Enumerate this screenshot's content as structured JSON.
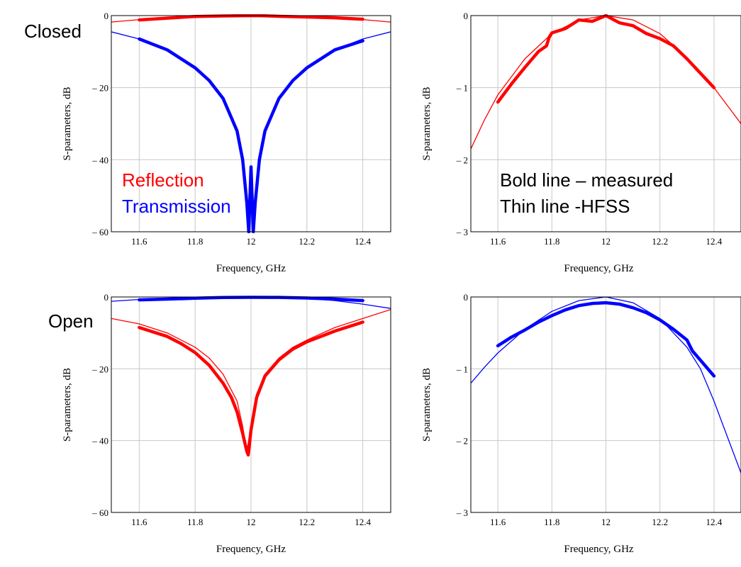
{
  "labels": {
    "closed": "Closed",
    "open": "Open",
    "reflection": "Reflection",
    "transmission": "Transmission",
    "bold_note": "Bold line – measured",
    "thin_note": "Thin line -HFSS"
  },
  "colors": {
    "reflection": "#ff0000",
    "transmission": "#0000ff",
    "grid": "#c8c8c8"
  },
  "chart_data": [
    {
      "type": "line",
      "panel": "top-left",
      "xlabel": "Frequency, GHz",
      "ylabel": "S-parameters, dB",
      "xlim": [
        11.5,
        12.5
      ],
      "ylim": [
        -60,
        0
      ],
      "xticks": [
        11.6,
        11.8,
        12,
        12.2,
        12.4
      ],
      "xtick_labels": [
        "11.6",
        "11.8",
        "12",
        "12.2",
        "12.4"
      ],
      "yticks": [
        0,
        -20,
        -40,
        -60
      ],
      "ytick_labels": [
        "0",
        "– 20",
        "– 40",
        "– 60"
      ],
      "grid": true,
      "series": [
        {
          "kind": "reflection-hfss",
          "color": "#ff0000",
          "bold": false,
          "x": [
            11.5,
            11.6,
            11.7,
            11.8,
            11.9,
            12.0,
            12.1,
            12.2,
            12.3,
            12.4,
            12.5
          ],
          "y": [
            -1.8,
            -1.1,
            -0.6,
            -0.3,
            -0.1,
            0.0,
            -0.1,
            -0.3,
            -0.6,
            -1.1,
            -1.8
          ]
        },
        {
          "kind": "reflection-measured",
          "color": "#ff0000",
          "bold": true,
          "x": [
            11.6,
            11.7,
            11.8,
            11.9,
            11.95,
            12.0,
            12.05,
            12.1,
            12.2,
            12.3,
            12.4
          ],
          "y": [
            -1.2,
            -0.7,
            -0.25,
            -0.1,
            -0.05,
            0.0,
            -0.05,
            -0.2,
            -0.4,
            -0.6,
            -1.0
          ]
        },
        {
          "kind": "transmission-hfss",
          "color": "#0000ff",
          "bold": false,
          "x": [
            11.5,
            11.6,
            11.7,
            11.8,
            11.85,
            11.9,
            11.95,
            11.97,
            11.985,
            11.995,
            12.005,
            12.015,
            12.03,
            12.05,
            12.1,
            12.15,
            12.2,
            12.3,
            12.4,
            12.5
          ],
          "y": [
            -4.5,
            -6.5,
            -9.5,
            -14.5,
            -18,
            -23,
            -32,
            -39,
            -50,
            -60,
            -60,
            -50,
            -39,
            -32,
            -23,
            -18,
            -14.5,
            -9.5,
            -6.5,
            -4.5
          ]
        },
        {
          "kind": "transmission-measured",
          "color": "#0000ff",
          "bold": true,
          "x": [
            11.6,
            11.7,
            11.8,
            11.85,
            11.9,
            11.95,
            11.97,
            11.985,
            11.992,
            12.0,
            12.008,
            12.015,
            12.03,
            12.05,
            12.1,
            12.15,
            12.2,
            12.3,
            12.4
          ],
          "y": [
            -6.5,
            -9.5,
            -14.5,
            -18,
            -23,
            -32,
            -40,
            -52,
            -60,
            -42,
            -60,
            -52,
            -40,
            -32,
            -23,
            -18,
            -14.5,
            -9.5,
            -7
          ]
        }
      ]
    },
    {
      "type": "line",
      "panel": "top-right",
      "xlabel": "Frequency, GHz",
      "ylabel": "S-parameters, dB",
      "xlim": [
        11.5,
        12.5
      ],
      "ylim": [
        -3,
        0
      ],
      "xticks": [
        11.6,
        11.8,
        12,
        12.2,
        12.4
      ],
      "xtick_labels": [
        "11.6",
        "11.8",
        "12",
        "12.2",
        "12.4"
      ],
      "yticks": [
        0,
        -1,
        -2,
        -3
      ],
      "ytick_labels": [
        "0",
        "– 1",
        "– 2",
        "– 3"
      ],
      "grid": true,
      "series": [
        {
          "kind": "reflection-hfss",
          "color": "#ff0000",
          "bold": false,
          "x": [
            11.5,
            11.55,
            11.6,
            11.7,
            11.8,
            11.9,
            12.0,
            12.1,
            12.2,
            12.3,
            12.4,
            12.5
          ],
          "y": [
            -1.85,
            -1.45,
            -1.1,
            -0.6,
            -0.25,
            -0.06,
            0.0,
            -0.06,
            -0.25,
            -0.58,
            -1.0,
            -1.5
          ]
        },
        {
          "kind": "reflection-measured",
          "color": "#ff0000",
          "bold": true,
          "x": [
            11.6,
            11.65,
            11.7,
            11.75,
            11.78,
            11.79,
            11.8,
            11.85,
            11.9,
            11.95,
            12.0,
            12.05,
            12.1,
            12.15,
            12.2,
            12.25,
            12.3,
            12.35,
            12.4
          ],
          "y": [
            -1.2,
            -0.95,
            -0.72,
            -0.5,
            -0.42,
            -0.3,
            -0.24,
            -0.18,
            -0.06,
            -0.08,
            0.0,
            -0.1,
            -0.14,
            -0.25,
            -0.32,
            -0.42,
            -0.6,
            -0.8,
            -1.0
          ]
        }
      ]
    },
    {
      "type": "line",
      "panel": "bottom-left",
      "xlabel": "Frequency, GHz",
      "ylabel": "S-parameters, dB",
      "xlim": [
        11.5,
        12.5
      ],
      "ylim": [
        -60,
        0
      ],
      "xticks": [
        11.6,
        11.8,
        12,
        12.2,
        12.4
      ],
      "xtick_labels": [
        "11.6",
        "11.8",
        "12",
        "12.2",
        "12.4"
      ],
      "yticks": [
        0,
        -20,
        -40,
        -60
      ],
      "ytick_labels": [
        "0",
        "– 20",
        "– 40",
        "– 60"
      ],
      "grid": true,
      "series": [
        {
          "kind": "transmission-hfss",
          "color": "#0000ff",
          "bold": false,
          "x": [
            11.5,
            11.6,
            11.7,
            11.8,
            11.9,
            12.0,
            12.1,
            12.2,
            12.3,
            12.4,
            12.5
          ],
          "y": [
            -1.2,
            -0.7,
            -0.35,
            -0.15,
            -0.05,
            0.0,
            -0.1,
            -0.4,
            -1.0,
            -2.0,
            -3.2
          ]
        },
        {
          "kind": "transmission-measured",
          "color": "#0000ff",
          "bold": true,
          "x": [
            11.6,
            11.7,
            11.8,
            11.9,
            12.0,
            12.1,
            12.2,
            12.3,
            12.4
          ],
          "y": [
            -0.8,
            -0.6,
            -0.35,
            -0.15,
            -0.1,
            -0.12,
            -0.3,
            -0.6,
            -1.0
          ]
        },
        {
          "kind": "reflection-hfss",
          "color": "#ff0000",
          "bold": false,
          "x": [
            11.5,
            11.6,
            11.7,
            11.75,
            11.8,
            11.85,
            11.9,
            11.93,
            11.95,
            11.97,
            11.985,
            12.0,
            12.02,
            12.05,
            12.1,
            12.15,
            12.2,
            12.3,
            12.4,
            12.5
          ],
          "y": [
            -6,
            -7.5,
            -10,
            -12,
            -14,
            -17,
            -21.5,
            -26,
            -29,
            -36,
            -43,
            -36,
            -27,
            -21.5,
            -17,
            -14,
            -12,
            -8.5,
            -6,
            -3.5
          ]
        },
        {
          "kind": "reflection-measured",
          "color": "#ff0000",
          "bold": true,
          "x": [
            11.6,
            11.7,
            11.75,
            11.8,
            11.85,
            11.9,
            11.93,
            11.95,
            11.97,
            11.985,
            11.99,
            12.0,
            12.02,
            12.05,
            12.1,
            12.15,
            12.2,
            12.3,
            12.4
          ],
          "y": [
            -8.5,
            -11,
            -13,
            -15.5,
            -19,
            -24,
            -28,
            -32,
            -38,
            -43,
            -44,
            -37,
            -28,
            -22,
            -17.5,
            -14.5,
            -12.5,
            -9.5,
            -7
          ]
        }
      ]
    },
    {
      "type": "line",
      "panel": "bottom-right",
      "xlabel": "Frequency, GHz",
      "ylabel": "S-parameters, dB",
      "xlim": [
        11.5,
        12.5
      ],
      "ylim": [
        -3,
        0
      ],
      "xticks": [
        11.6,
        11.8,
        12,
        12.2,
        12.4
      ],
      "xtick_labels": [
        "11.6",
        "11.8",
        "12",
        "12.2",
        "12.4"
      ],
      "yticks": [
        0,
        -1,
        -2,
        -3
      ],
      "ytick_labels": [
        "0",
        "– 1",
        "– 2",
        "– 3"
      ],
      "grid": true,
      "series": [
        {
          "kind": "transmission-hfss",
          "color": "#0000ff",
          "bold": false,
          "x": [
            11.5,
            11.55,
            11.6,
            11.7,
            11.8,
            11.9,
            12.0,
            12.1,
            12.2,
            12.3,
            12.35,
            12.4,
            12.45,
            12.5
          ],
          "y": [
            -1.2,
            -0.98,
            -0.78,
            -0.45,
            -0.2,
            -0.05,
            0.0,
            -0.08,
            -0.3,
            -0.7,
            -1.0,
            -1.45,
            -1.95,
            -2.45
          ]
        },
        {
          "kind": "transmission-measured",
          "color": "#0000ff",
          "bold": true,
          "x": [
            11.6,
            11.65,
            11.7,
            11.75,
            11.8,
            11.85,
            11.9,
            11.95,
            12.0,
            12.05,
            12.1,
            12.15,
            12.2,
            12.25,
            12.3,
            12.32,
            12.35,
            12.4
          ],
          "y": [
            -0.68,
            -0.56,
            -0.46,
            -0.35,
            -0.26,
            -0.18,
            -0.12,
            -0.09,
            -0.08,
            -0.1,
            -0.15,
            -0.22,
            -0.32,
            -0.45,
            -0.6,
            -0.75,
            -0.88,
            -1.1
          ]
        }
      ]
    }
  ]
}
